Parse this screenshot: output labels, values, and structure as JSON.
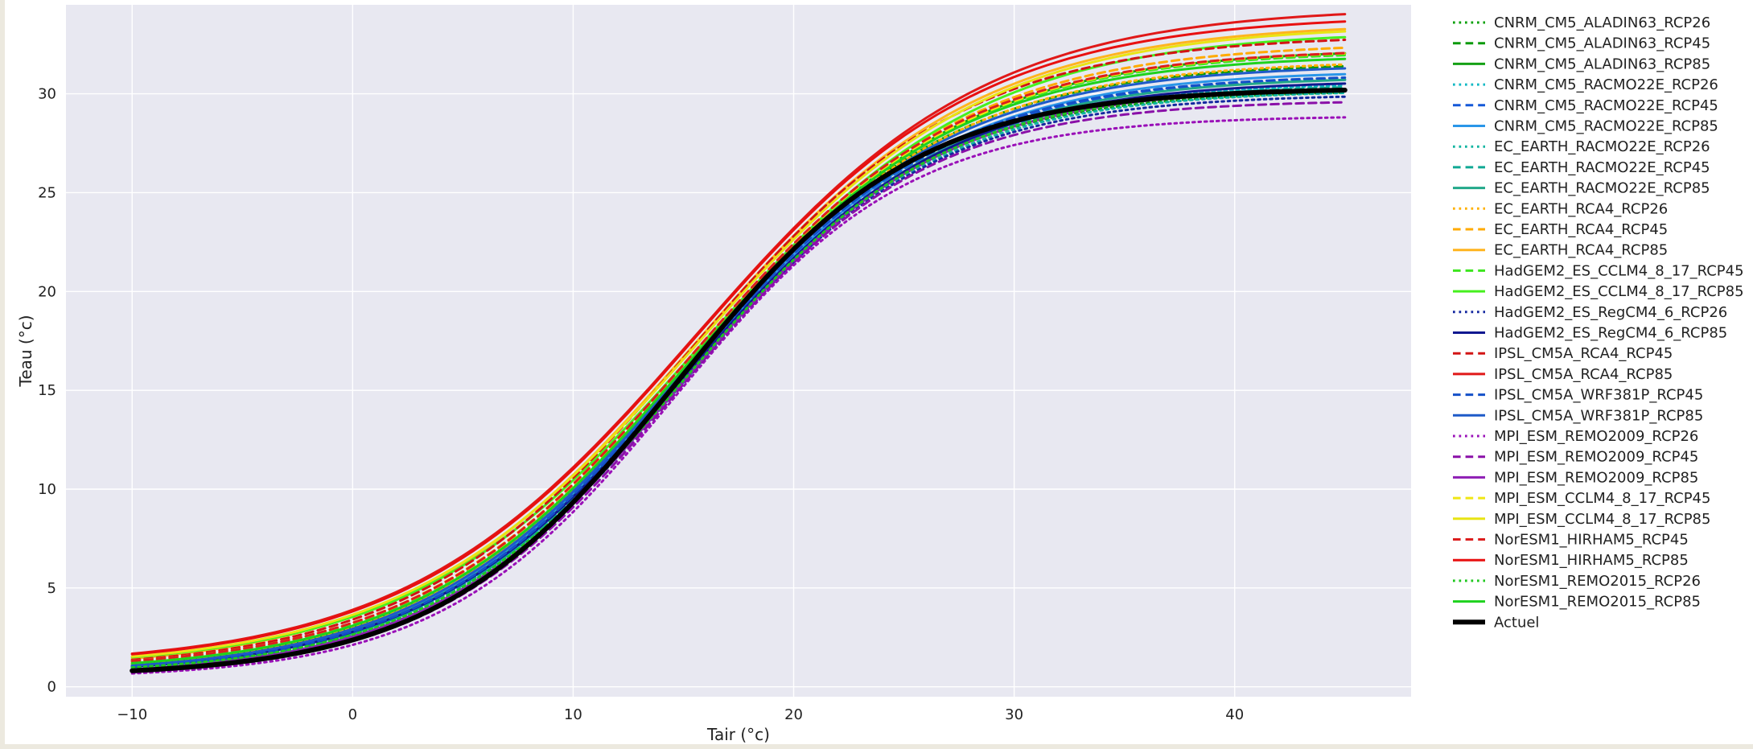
{
  "chart_data": {
    "type": "line",
    "title": "",
    "xlabel": "Tair (°c)",
    "ylabel": "Teau (°c)",
    "xlim": [
      -13,
      48
    ],
    "ylim": [
      -0.5,
      34.5
    ],
    "xticks": [
      -10,
      0,
      10,
      20,
      30,
      40
    ],
    "yticks": [
      0,
      5,
      10,
      15,
      20,
      25,
      30
    ],
    "xtick_labels": [
      "−10",
      "0",
      "10",
      "20",
      "30",
      "40"
    ],
    "ytick_labels": [
      "0",
      "5",
      "10",
      "15",
      "20",
      "25",
      "30"
    ],
    "x_range": [
      -10,
      45
    ],
    "grid": true,
    "legend_position": "outside-right",
    "background_color": "#e8e8f1",
    "grid_color": "#ffffff",
    "series": [
      {
        "name": "CNRM_CM5_ALADIN63_RCP26",
        "color": "#0aa00a",
        "style": "dotted",
        "width": 3,
        "params": [
          29.5,
          14.9,
          0.178,
          0.7
        ]
      },
      {
        "name": "CNRM_CM5_ALADIN63_RCP45",
        "color": "#0a9a0a",
        "style": "dashed",
        "width": 3,
        "params": [
          31.2,
          15.1,
          0.168,
          0.4
        ]
      },
      {
        "name": "CNRM_CM5_ALADIN63_RCP85",
        "color": "#14a014",
        "style": "solid",
        "width": 3,
        "params": [
          31.7,
          15.3,
          0.162,
          0.6
        ]
      },
      {
        "name": "CNRM_CM5_RACMO22E_RCP26",
        "color": "#10b8c4",
        "style": "dotted",
        "width": 3,
        "params": [
          30.0,
          15.0,
          0.172,
          0.6
        ]
      },
      {
        "name": "CNRM_CM5_RACMO22E_RCP45",
        "color": "#1458d8",
        "style": "dashed",
        "width": 3,
        "params": [
          30.3,
          15.0,
          0.17,
          0.6
        ]
      },
      {
        "name": "CNRM_CM5_RACMO22E_RCP85",
        "color": "#2a96e8",
        "style": "solid",
        "width": 3,
        "params": [
          30.6,
          15.1,
          0.167,
          0.6
        ]
      },
      {
        "name": "EC_EARTH_RACMO22E_RCP26",
        "color": "#10b4a0",
        "style": "dotted",
        "width": 3,
        "params": [
          29.6,
          15.0,
          0.175,
          0.6
        ]
      },
      {
        "name": "EC_EARTH_RACMO22E_RCP45",
        "color": "#10a894",
        "style": "dashed",
        "width": 3,
        "params": [
          29.9,
          15.0,
          0.172,
          0.6
        ]
      },
      {
        "name": "EC_EARTH_RACMO22E_RCP85",
        "color": "#22a88a",
        "style": "solid",
        "width": 3,
        "params": [
          30.3,
          15.1,
          0.168,
          0.6
        ]
      },
      {
        "name": "EC_EARTH_RCA4_RCP26",
        "color": "#ffb000",
        "style": "dotted",
        "width": 3,
        "params": [
          31.0,
          15.2,
          0.166,
          0.7
        ]
      },
      {
        "name": "EC_EARTH_RCA4_RCP45",
        "color": "#ffaa00",
        "style": "dashed",
        "width": 3,
        "params": [
          31.9,
          15.3,
          0.16,
          0.7
        ]
      },
      {
        "name": "EC_EARTH_RCA4_RCP85",
        "color": "#ffb41e",
        "style": "solid",
        "width": 3,
        "params": [
          32.8,
          15.4,
          0.155,
          0.8
        ]
      },
      {
        "name": "HadGEM2_ES_CCLM4_8_17_RCP45",
        "color": "#3ce61e",
        "style": "dashed",
        "width": 3,
        "params": [
          31.4,
          15.3,
          0.163,
          0.8
        ]
      },
      {
        "name": "HadGEM2_ES_CCLM4_8_17_RCP85",
        "color": "#46f01e",
        "style": "solid",
        "width": 3,
        "params": [
          32.3,
          15.6,
          0.155,
          0.9
        ]
      },
      {
        "name": "HadGEM2_ES_RegCM4_6_RCP26",
        "color": "#1428a0",
        "style": "dotted",
        "width": 3,
        "params": [
          29.4,
          14.9,
          0.176,
          0.6
        ]
      },
      {
        "name": "HadGEM2_ES_RegCM4_6_RCP85",
        "color": "#101890",
        "style": "solid",
        "width": 3,
        "params": [
          30.1,
          15.0,
          0.17,
          0.6
        ]
      },
      {
        "name": "IPSL_CM5A_RCA4_RCP45",
        "color": "#d21414",
        "style": "dashed",
        "width": 3,
        "params": [
          32.2,
          15.2,
          0.16,
          0.8
        ]
      },
      {
        "name": "IPSL_CM5A_RCA4_RCP85",
        "color": "#e01818",
        "style": "solid",
        "width": 3,
        "params": [
          33.4,
          15.5,
          0.152,
          1.0
        ]
      },
      {
        "name": "IPSL_CM5A_WRF381P_RCP45",
        "color": "#1450c8",
        "style": "dashed",
        "width": 3,
        "params": [
          30.4,
          15.0,
          0.17,
          0.6
        ]
      },
      {
        "name": "IPSL_CM5A_WRF381P_RCP85",
        "color": "#1e5ac8",
        "style": "solid",
        "width": 3,
        "params": [
          30.9,
          15.1,
          0.166,
          0.6
        ]
      },
      {
        "name": "MPI_ESM_REMO2009_RCP26",
        "color": "#9a10b8",
        "style": "dotted",
        "width": 3,
        "params": [
          28.5,
          14.6,
          0.188,
          0.4
        ]
      },
      {
        "name": "MPI_ESM_REMO2009_RCP45",
        "color": "#8a10a8",
        "style": "dashed",
        "width": 3,
        "params": [
          29.3,
          14.8,
          0.18,
          0.4
        ]
      },
      {
        "name": "MPI_ESM_REMO2009_RCP85",
        "color": "#8e1eb4",
        "style": "solid",
        "width": 3,
        "params": [
          29.9,
          15.0,
          0.174,
          0.5
        ]
      },
      {
        "name": "MPI_ESM_CCLM4_8_17_RCP45",
        "color": "#f0e614",
        "style": "dashed",
        "width": 3,
        "params": [
          31.5,
          15.3,
          0.162,
          0.8
        ]
      },
      {
        "name": "MPI_ESM_CCLM4_8_17_RCP85",
        "color": "#e8e414",
        "style": "solid",
        "width": 3,
        "params": [
          32.6,
          15.5,
          0.154,
          0.9
        ]
      },
      {
        "name": "NorESM1_HIRHAM5_RCP45",
        "color": "#dc1e1e",
        "style": "dashed",
        "width": 3,
        "params": [
          31.5,
          15.2,
          0.163,
          0.8
        ]
      },
      {
        "name": "NorESM1_HIRHAM5_RCP85",
        "color": "#e81010",
        "style": "solid",
        "width": 3,
        "params": [
          33.0,
          15.4,
          0.154,
          1.0
        ]
      },
      {
        "name": "NorESM1_REMO2015_RCP26",
        "color": "#1ec81e",
        "style": "dotted",
        "width": 3,
        "params": [
          29.8,
          15.0,
          0.174,
          0.6
        ]
      },
      {
        "name": "NorESM1_REMO2015_RCP85",
        "color": "#1ed21e",
        "style": "solid",
        "width": 3,
        "params": [
          31.3,
          15.2,
          0.164,
          0.7
        ]
      },
      {
        "name": "Actuel",
        "color": "#000000",
        "style": "solid",
        "width": 6,
        "params": [
          29.8,
          14.7,
          0.184,
          0.5
        ]
      }
    ]
  }
}
